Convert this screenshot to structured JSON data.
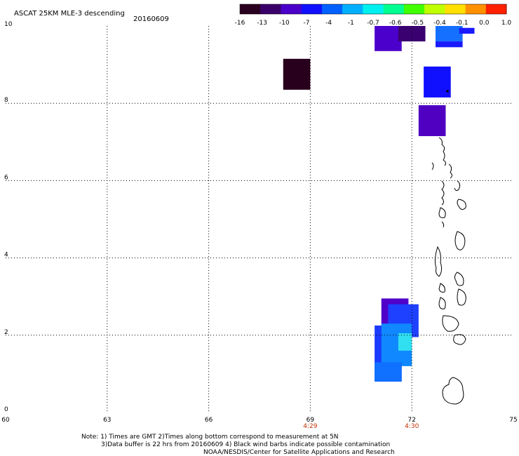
{
  "header": {
    "title": "ASCAT 25KM MLE-3 descending",
    "date": "20160609"
  },
  "colorbar": {
    "tick_labels": [
      "-16",
      "-13",
      "-10",
      "-7",
      "-4",
      "-1",
      "-0.7",
      "-0.6",
      "-0.5",
      "-0.4",
      "-0.1",
      "0.0",
      "1.0"
    ],
    "colors": [
      "#2a0020",
      "#3a006a",
      "#4a00c8",
      "#1010ff",
      "#0060ff",
      "#00b0ff",
      "#00f0f0",
      "#00ff90",
      "#40ff00",
      "#c0ff00",
      "#ffe000",
      "#ff9000",
      "#ff2000"
    ]
  },
  "axes": {
    "x_ticks": [
      "60",
      "63",
      "66",
      "69",
      "72",
      "75"
    ],
    "y_ticks": [
      "0",
      "2",
      "4",
      "6",
      "8",
      "10"
    ],
    "x_range": [
      60,
      75
    ],
    "y_range": [
      0,
      10
    ],
    "grid": "dotted"
  },
  "times": [
    {
      "label": "4:29",
      "lon": 69,
      "color": "#c03000"
    },
    {
      "label": "4:30",
      "lon": 72,
      "color": "#c03000"
    }
  ],
  "cells": [
    {
      "lon0": 68.2,
      "lon1": 69.0,
      "lat0": 8.35,
      "lat1": 9.15,
      "color": "#28001e"
    },
    {
      "lon0": 70.9,
      "lon1": 71.7,
      "lat0": 9.35,
      "lat1": 10.0,
      "color": "#4c00cc"
    },
    {
      "lon0": 71.6,
      "lon1": 72.4,
      "lat0": 9.6,
      "lat1": 10.0,
      "color": "#3a0070"
    },
    {
      "lon0": 72.7,
      "lon1": 73.5,
      "lat0": 9.6,
      "lat1": 10.0,
      "color": "#1670ff"
    },
    {
      "lon0": 72.7,
      "lon1": 73.5,
      "lat0": 9.45,
      "lat1": 9.6,
      "color": "#1a1aff"
    },
    {
      "lon0": 73.4,
      "lon1": 73.85,
      "lat0": 9.8,
      "lat1": 9.95,
      "color": "#1a1aff"
    },
    {
      "lon0": 72.35,
      "lon1": 73.15,
      "lat0": 8.15,
      "lat1": 8.95,
      "color": "#1010ff"
    },
    {
      "lon0": 72.2,
      "lon1": 73.0,
      "lat0": 7.15,
      "lat1": 7.95,
      "color": "#5000c0"
    },
    {
      "lon0": 71.1,
      "lon1": 71.9,
      "lat0": 2.15,
      "lat1": 2.95,
      "color": "#5000c8"
    },
    {
      "lon0": 71.3,
      "lon1": 72.2,
      "lat0": 1.95,
      "lat1": 2.8,
      "color": "#1e40ff"
    },
    {
      "lon0": 70.9,
      "lon1": 71.7,
      "lat0": 0.8,
      "lat1": 2.25,
      "color": "#1a3aff"
    },
    {
      "lon0": 71.1,
      "lon1": 72.0,
      "lat0": 1.2,
      "lat1": 2.3,
      "color": "#1088ff"
    },
    {
      "lon0": 71.6,
      "lon1": 72.0,
      "lat0": 1.6,
      "lat1": 2.05,
      "color": "#30e0f0"
    },
    {
      "lon0": 70.9,
      "lon1": 71.7,
      "lat0": 0.8,
      "lat1": 1.3,
      "color": "#1070ff"
    }
  ],
  "footer": {
    "note_line1": "Note: 1) Times are GMT 2)Times along bottom correspond to measurement at 5N",
    "note_line2": "3)Data buffer is 22 hrs from 20160609 4) Black wind barbs indicate possible contamination",
    "credit": "NOAA/NESDIS/Center for Satellite Applications and Research"
  }
}
